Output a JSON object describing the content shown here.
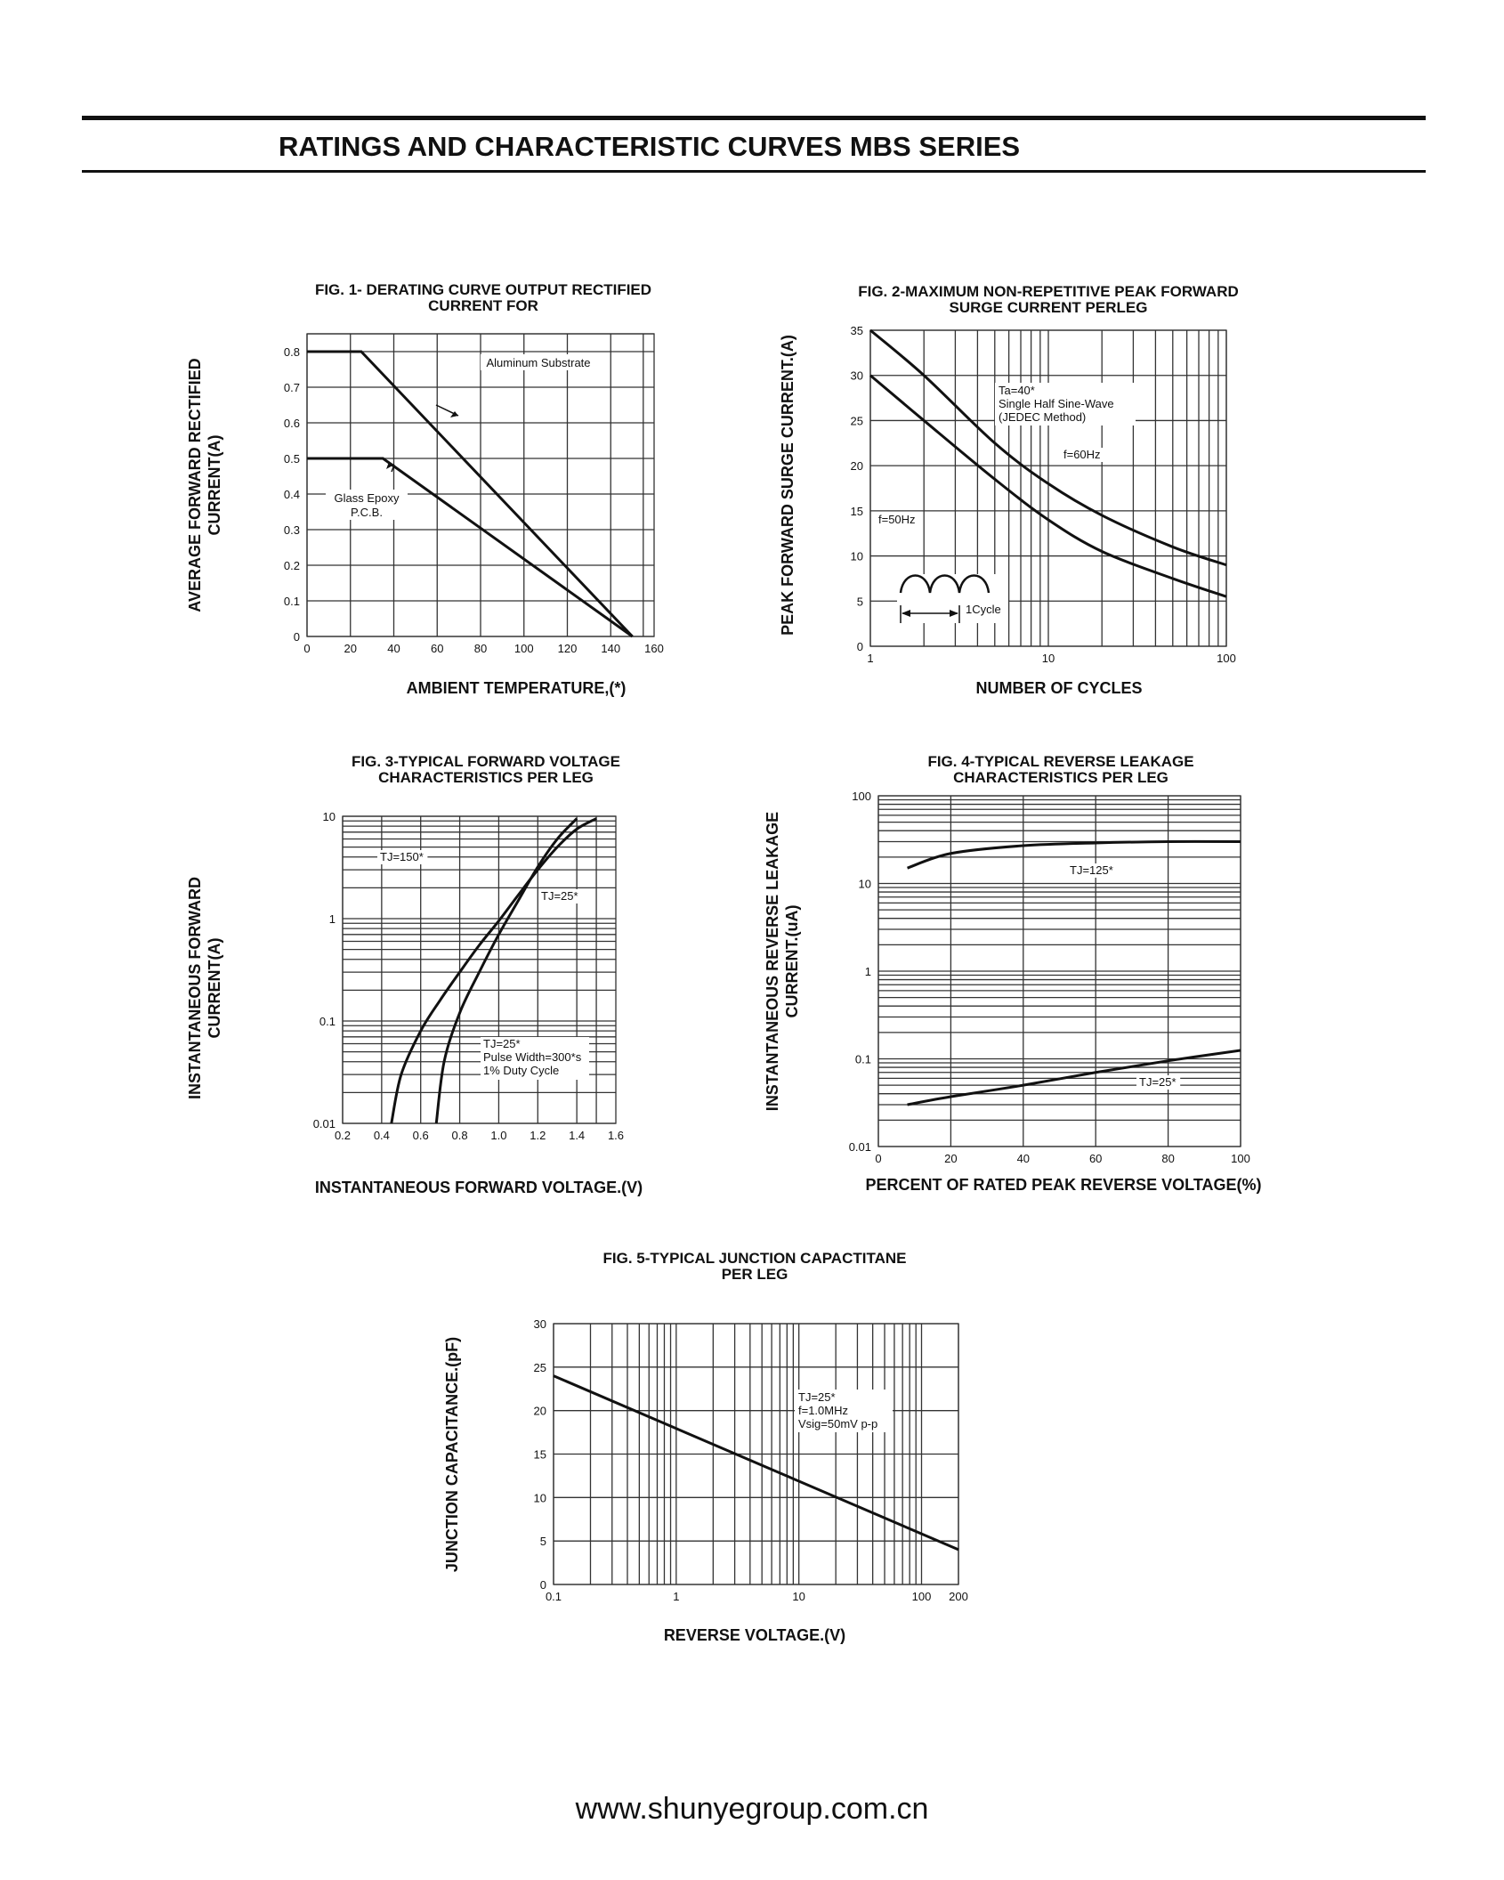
{
  "page": {
    "title": "RATINGS AND CHARACTERISTIC CURVES MBS SERIES",
    "footer": "www.shunyegroup.com.cn"
  },
  "chart_data": [
    {
      "id": "fig1",
      "type": "line",
      "title": [
        "FIG. 1- DERATING CURVE OUTPUT RECTIFIED",
        "CURRENT FOR"
      ],
      "xlabel": "AMBIENT TEMPERATURE,(*)",
      "ylabel": [
        "AVERAGE FORWARD RECTIFIED",
        "CURRENT(A)"
      ],
      "xlim": [
        0,
        160
      ],
      "ylim": [
        0,
        0.85
      ],
      "xticks": [
        0,
        20,
        40,
        60,
        80,
        100,
        120,
        140,
        160
      ],
      "yticks": [
        0,
        0.1,
        0.2,
        0.3,
        0.4,
        0.5,
        0.6,
        0.7,
        0.8
      ],
      "series": [
        {
          "name": "Aluminum Substrate",
          "x": [
            0,
            25,
            150
          ],
          "y": [
            0.8,
            0.8,
            0
          ]
        },
        {
          "name": "Glass Epoxy P.C.B.",
          "x": [
            0,
            35,
            150
          ],
          "y": [
            0.5,
            0.5,
            0
          ]
        }
      ]
    },
    {
      "id": "fig2",
      "type": "line",
      "xscale": "log",
      "title": [
        "FIG. 2-MAXIMUM NON-REPETITIVE PEAK FORWARD",
        "SURGE CURRENT PERLEG"
      ],
      "xlabel": "NUMBER OF CYCLES",
      "ylabel": [
        "PEAK  FORWARD SURGE CURRENT.(A)"
      ],
      "xlim": [
        1,
        100
      ],
      "ylim": [
        0,
        35
      ],
      "xticks": [
        1,
        10,
        100
      ],
      "yticks": [
        0,
        5,
        10,
        15,
        20,
        25,
        30,
        35
      ],
      "annotations": [
        "Ta=40*",
        "Single Half Sine-Wave",
        "(JEDEC Method)",
        "1Cycle"
      ],
      "series": [
        {
          "name": "f=60Hz",
          "x": [
            1,
            2,
            5,
            10,
            20,
            50,
            100
          ],
          "y": [
            35,
            30,
            22.5,
            18,
            14.5,
            11,
            9
          ]
        },
        {
          "name": "f=50Hz",
          "x": [
            1,
            2,
            5,
            10,
            20,
            50,
            100
          ],
          "y": [
            30,
            25,
            18.5,
            14,
            10.5,
            7.5,
            5.5
          ]
        }
      ]
    },
    {
      "id": "fig3",
      "type": "line",
      "yscale": "log",
      "title": [
        "FIG. 3-TYPICAL FORWARD VOLTAGE",
        "CHARACTERISTICS PER LEG"
      ],
      "xlabel": "INSTANTANEOUS FORWARD VOLTAGE.(V)",
      "ylabel": [
        "INSTANTANEOUS FORWARD",
        "CURRENT(A)"
      ],
      "xlim": [
        0.2,
        1.6
      ],
      "ylim": [
        0.01,
        10
      ],
      "xticks": [
        0.2,
        0.4,
        0.6,
        0.8,
        1.0,
        1.2,
        1.4,
        1.6
      ],
      "yticks": [
        0.01,
        0.1,
        1,
        10
      ],
      "annotations": [
        "TJ=25*",
        "Pulse Width=300*s",
        "1% Duty Cycle"
      ],
      "series": [
        {
          "name": "TJ=150*",
          "x": [
            0.45,
            0.5,
            0.6,
            0.7,
            0.8,
            0.9,
            1.0,
            1.1,
            1.2,
            1.3,
            1.4,
            1.5
          ],
          "y": [
            0.01,
            0.03,
            0.08,
            0.16,
            0.3,
            0.55,
            0.95,
            1.7,
            3.0,
            5.0,
            7.5,
            9.5
          ]
        },
        {
          "name": "TJ=25*",
          "x": [
            0.68,
            0.72,
            0.8,
            0.9,
            1.0,
            1.1,
            1.2,
            1.3,
            1.4
          ],
          "y": [
            0.01,
            0.04,
            0.12,
            0.3,
            0.7,
            1.5,
            3.2,
            6.0,
            9.5
          ]
        }
      ]
    },
    {
      "id": "fig4",
      "type": "line",
      "yscale": "log",
      "title": [
        "FIG. 4-TYPICAL REVERSE LEAKAGE",
        "CHARACTERISTICS PER LEG"
      ],
      "xlabel": "PERCENT OF RATED PEAK REVERSE VOLTAGE(%)",
      "ylabel": [
        "INSTANTANEOUS REVERSE LEAKAGE",
        "CURRENT.(uA)"
      ],
      "xlim": [
        0,
        100
      ],
      "ylim": [
        0.01,
        100
      ],
      "xticks": [
        0,
        20,
        40,
        60,
        80,
        100
      ],
      "yticks": [
        0.01,
        0.1,
        1,
        10,
        100
      ],
      "series": [
        {
          "name": "TJ=125*",
          "x": [
            8,
            20,
            40,
            60,
            80,
            100
          ],
          "y": [
            15,
            22,
            27,
            29,
            30,
            30
          ]
        },
        {
          "name": "TJ=25*",
          "x": [
            8,
            20,
            40,
            60,
            80,
            100
          ],
          "y": [
            0.03,
            0.037,
            0.05,
            0.07,
            0.095,
            0.125
          ]
        }
      ]
    },
    {
      "id": "fig5",
      "type": "line",
      "xscale": "log",
      "title": [
        "FIG. 5-TYPICAL JUNCTION CAPACTITANE",
        "PER LEG"
      ],
      "xlabel": "REVERSE VOLTAGE.(V)",
      "ylabel": [
        "JUNCTION CAPACITANCE.(pF)"
      ],
      "xlim": [
        0.1,
        200
      ],
      "ylim": [
        0,
        30
      ],
      "xticks": [
        0.1,
        1,
        10,
        100,
        200
      ],
      "yticks": [
        0,
        5,
        10,
        15,
        20,
        25,
        30
      ],
      "annotations": [
        "TJ=25*",
        "f=1.0MHz",
        "Vsig=50mV p-p"
      ],
      "series": [
        {
          "name": "",
          "x": [
            0.1,
            200
          ],
          "y": [
            24,
            4
          ]
        }
      ]
    }
  ]
}
